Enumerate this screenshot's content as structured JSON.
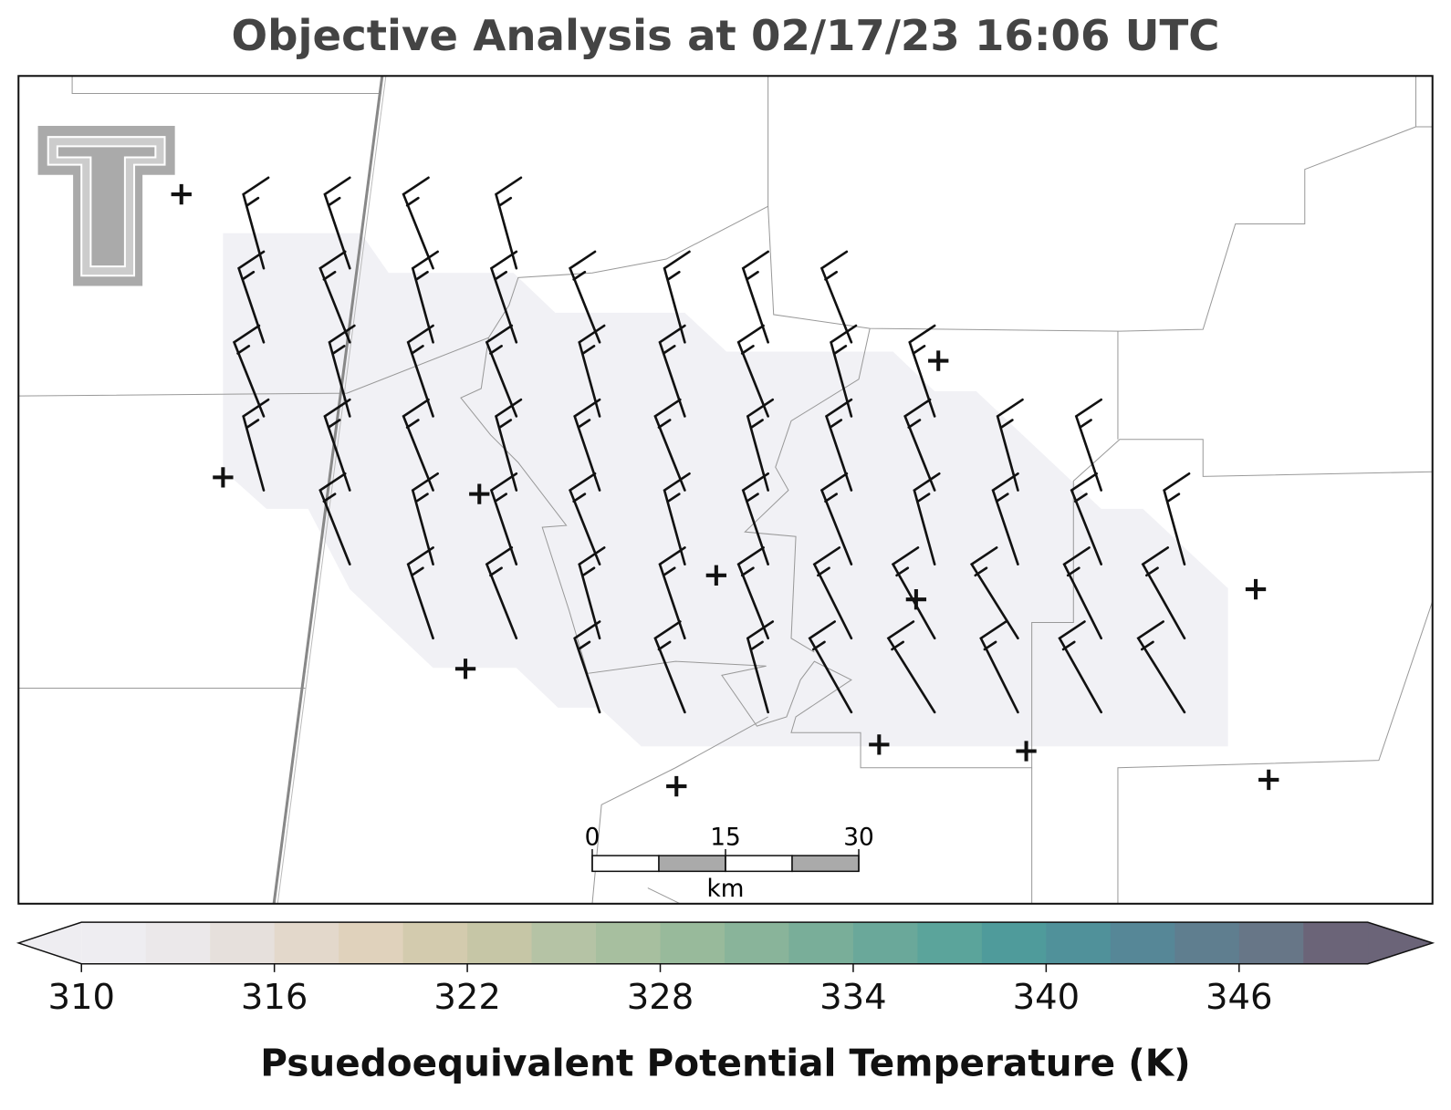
{
  "title": "Objective Analysis at 02/17/23 16:06 UTC",
  "scale_bar": {
    "ticks": [
      0,
      15,
      30
    ],
    "unit": "km"
  },
  "colorbar": {
    "label": "Psuedoequivalent Potential Temperature (K)",
    "lim": [
      310,
      350
    ],
    "ticks": [
      310,
      316,
      322,
      328,
      334,
      340,
      346
    ],
    "colors": [
      "#eeedf1",
      "#ebe8ea",
      "#e6e0dc",
      "#e3d8cb",
      "#e0d2bc",
      "#d3cbae",
      "#c6c6a6",
      "#b5c3a5",
      "#a7bf9f",
      "#98ba9b",
      "#89b49a",
      "#79ae99",
      "#6aa89a",
      "#5ba49b",
      "#4f9b9b",
      "#50919a",
      "#568797",
      "#5f7e8f",
      "#677687",
      "#6b6478"
    ]
  }
}
